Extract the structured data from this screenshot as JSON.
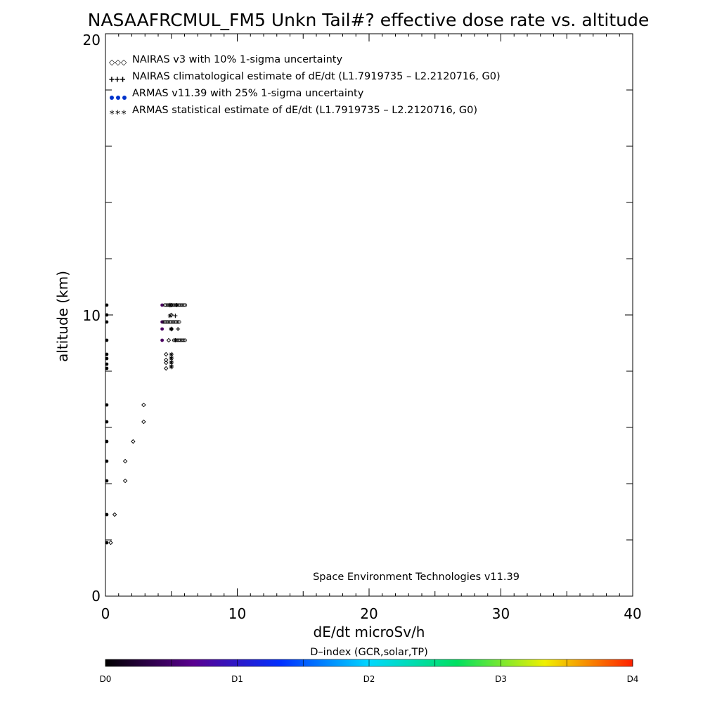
{
  "chart_data": {
    "type": "scatter",
    "title": "NASAAFRCMUL_FM5 Unkn Tail#? effective dose rate vs. altitude",
    "xlabel": "dE/dt microSv/h",
    "ylabel": "altitude (km)",
    "xlim": [
      0,
      40
    ],
    "ylim": [
      0,
      20
    ],
    "x_tick_labels": [
      "0",
      "10",
      "20",
      "30",
      "40"
    ],
    "y_tick_labels": [
      "0",
      "10",
      "20"
    ],
    "annotation": "Space Environment Technologies v11.39",
    "legend_placement": "top-left",
    "grid": false,
    "series": [
      {
        "name": "NAIRAS v3 with 10% 1-sigma uncertainty",
        "marker": "diamond",
        "color": "#000000",
        "points": [
          [
            0.4,
            1.9
          ],
          [
            0.7,
            2.9
          ],
          [
            1.5,
            4.1
          ],
          [
            1.5,
            4.8
          ],
          [
            2.1,
            5.5
          ],
          [
            2.9,
            6.2
          ],
          [
            2.9,
            6.8
          ],
          [
            4.6,
            8.1
          ],
          [
            4.6,
            8.3
          ],
          [
            4.6,
            8.4
          ],
          [
            4.6,
            8.6
          ],
          [
            4.8,
            9.1
          ],
          [
            5.0,
            9.5
          ],
          [
            5.0,
            10.0
          ],
          [
            5.0,
            10.35
          ]
        ]
      },
      {
        "name": "NAIRAS climatological estimate of dE/dt (L1.7919735 – L2.2120716, G0)",
        "marker": "plus",
        "color": "#000000",
        "points": [
          [
            5.0,
            8.2
          ],
          [
            5.0,
            8.35
          ],
          [
            5.0,
            8.5
          ],
          [
            5.3,
            9.1
          ],
          [
            5.5,
            9.5
          ],
          [
            5.3,
            9.97
          ],
          [
            5.4,
            10.35
          ]
        ]
      },
      {
        "name": "ARMAS v11.39 with 25% 1-sigma uncertainty",
        "marker": "dot",
        "color": "#0033cc",
        "points": [
          [
            0.1,
            1.9
          ],
          [
            0.1,
            2.9
          ],
          [
            0.1,
            4.1
          ],
          [
            0.1,
            4.8
          ],
          [
            0.1,
            5.5
          ],
          [
            0.1,
            6.2
          ],
          [
            0.1,
            6.8
          ],
          [
            0.1,
            8.1
          ],
          [
            0.1,
            8.25
          ],
          [
            0.1,
            8.45
          ],
          [
            0.1,
            8.6
          ],
          [
            0.1,
            9.1
          ],
          [
            0.1,
            9.75
          ],
          [
            0.1,
            10.0
          ],
          [
            0.1,
            10.35
          ],
          [
            4.3,
            9.1
          ],
          [
            4.3,
            9.5
          ],
          [
            4.3,
            9.75
          ],
          [
            4.3,
            10.35
          ]
        ]
      },
      {
        "name": "ARMAS statistical estimate of dE/dt (L1.7919735 – L2.2120716, G0)",
        "marker": "asterisk",
        "color": "#000000",
        "points": [
          [
            5.0,
            8.15
          ],
          [
            5.0,
            8.3
          ],
          [
            5.0,
            8.45
          ],
          [
            5.0,
            8.6
          ],
          [
            5.0,
            9.5
          ],
          [
            4.9,
            9.97
          ],
          [
            4.9,
            10.35
          ]
        ]
      }
    ],
    "colorbar": {
      "title": "D–index (GCR,solar,TP)",
      "labels": [
        "D0",
        "D1",
        "D2",
        "D3",
        "D4"
      ],
      "label_values": [
        0,
        1,
        2,
        3,
        4
      ],
      "value_range": [
        0,
        4
      ],
      "colors": [
        "#000000",
        "#5a0090",
        "#0030ff",
        "#00d8ff",
        "#00e060",
        "#f0f000",
        "#ff2000"
      ]
    }
  }
}
